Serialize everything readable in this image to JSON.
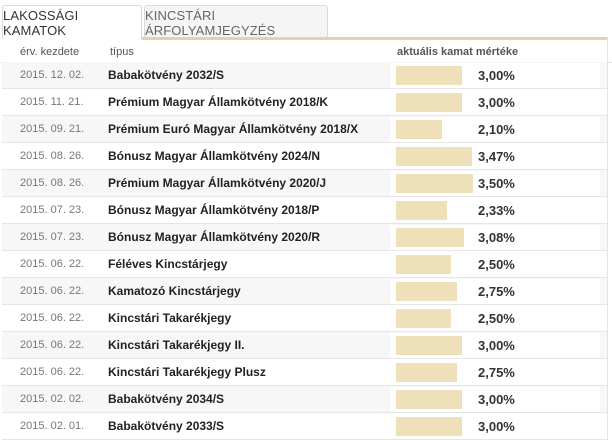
{
  "tabs": [
    {
      "label": "LAKOSSÁGI KAMATOK",
      "active": true
    },
    {
      "label": "KINCSTÁRI ÁRFOLYAMJEGYZÉS",
      "active": false
    }
  ],
  "columns": {
    "date": "érv. kezdete",
    "type": "típus",
    "rate": "aktuális kamat mértéke"
  },
  "colors": {
    "accent_bar": "#eee0b8",
    "tab_underline": "#e2d3ab"
  },
  "rows": [
    {
      "date": "2015. 12. 02.",
      "type": "Babakötvény 2032/S",
      "rate": "3,00%",
      "value": 3.0
    },
    {
      "date": "2015. 11. 21.",
      "type": "Prémium Magyar Államkötvény 2018/K",
      "rate": "3,00%",
      "value": 3.0
    },
    {
      "date": "2015. 09. 21.",
      "type": "Prémium Euró Magyar Államkötvény 2018/X",
      "rate": "2,10%",
      "value": 2.1
    },
    {
      "date": "2015. 08. 26.",
      "type": "Bónusz Magyar Államkötvény 2024/N",
      "rate": "3,47%",
      "value": 3.47
    },
    {
      "date": "2015. 08. 26.",
      "type": "Prémium Magyar Államkötvény 2020/J",
      "rate": "3,50%",
      "value": 3.5
    },
    {
      "date": "2015. 07. 23.",
      "type": "Bónusz Magyar Államkötvény 2018/P",
      "rate": "2,33%",
      "value": 2.33
    },
    {
      "date": "2015. 07. 23.",
      "type": "Bónusz Magyar Államkötvény 2020/R",
      "rate": "3,08%",
      "value": 3.08
    },
    {
      "date": "2015. 06. 22.",
      "type": "Féléves Kincstárjegy",
      "rate": "2,50%",
      "value": 2.5
    },
    {
      "date": "2015. 06. 22.",
      "type": "Kamatozó Kincstárjegy",
      "rate": "2,75%",
      "value": 2.75
    },
    {
      "date": "2015. 06. 22.",
      "type": "Kincstári Takarékjegy",
      "rate": "2,50%",
      "value": 2.5
    },
    {
      "date": "2015. 06. 22.",
      "type": "Kincstári Takarékjegy II.",
      "rate": "3,00%",
      "value": 3.0
    },
    {
      "date": "2015. 06. 22.",
      "type": "Kincstári Takarékjegy Plusz",
      "rate": "2,75%",
      "value": 2.75
    },
    {
      "date": "2015. 02. 02.",
      "type": "Babakötvény 2034/S",
      "rate": "3,00%",
      "value": 3.0
    },
    {
      "date": "2015. 02. 01.",
      "type": "Babakötvény 2033/S",
      "rate": "3,00%",
      "value": 3.0
    }
  ]
}
